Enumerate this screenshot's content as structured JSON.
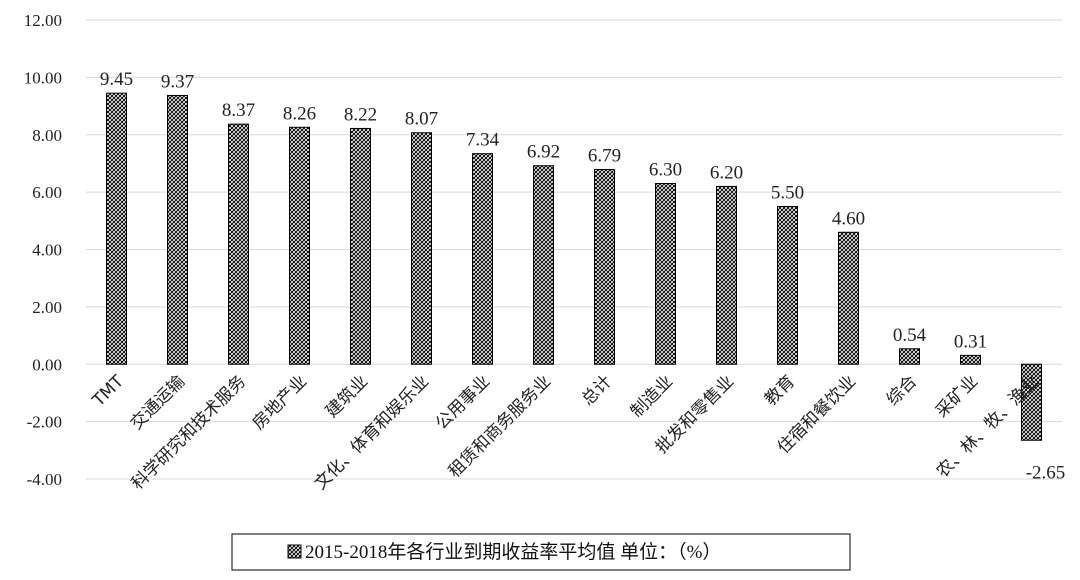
{
  "chart_data": {
    "type": "bar",
    "categories": [
      "TMT",
      "交通运输",
      "科学研究和技术服务",
      "房地产业",
      "建筑业",
      "文化、体育和娱乐业",
      "公用事业",
      "租赁和商务服务业",
      "总计",
      "制造业",
      "批发和零售业",
      "教育",
      "住宿和餐饮业",
      "综合",
      "采矿业",
      "农、林、牧、渔业"
    ],
    "values": [
      9.45,
      9.37,
      8.37,
      8.26,
      8.22,
      8.07,
      7.34,
      6.92,
      6.79,
      6.3,
      6.2,
      5.5,
      4.6,
      0.54,
      0.31,
      -2.65
    ],
    "value_labels": [
      "9.45",
      "9.37",
      "8.37",
      "8.26",
      "8.22",
      "8.07",
      "7.34",
      "6.92",
      "6.79",
      "6.30",
      "6.20",
      "5.50",
      "4.60",
      "0.54",
      "0.31",
      "-2.65"
    ],
    "yticks": [
      "-4.00",
      "-2.00",
      "0.00",
      "2.00",
      "4.00",
      "6.00",
      "8.00",
      "10.00",
      "12.00"
    ],
    "ylim": [
      -4,
      12
    ],
    "grid": true,
    "legend": {
      "position": "bottom",
      "label": "2015-2018年各行业到期收益率平均值 单位：（%）"
    },
    "title": "",
    "xlabel": "",
    "ylabel": ""
  }
}
